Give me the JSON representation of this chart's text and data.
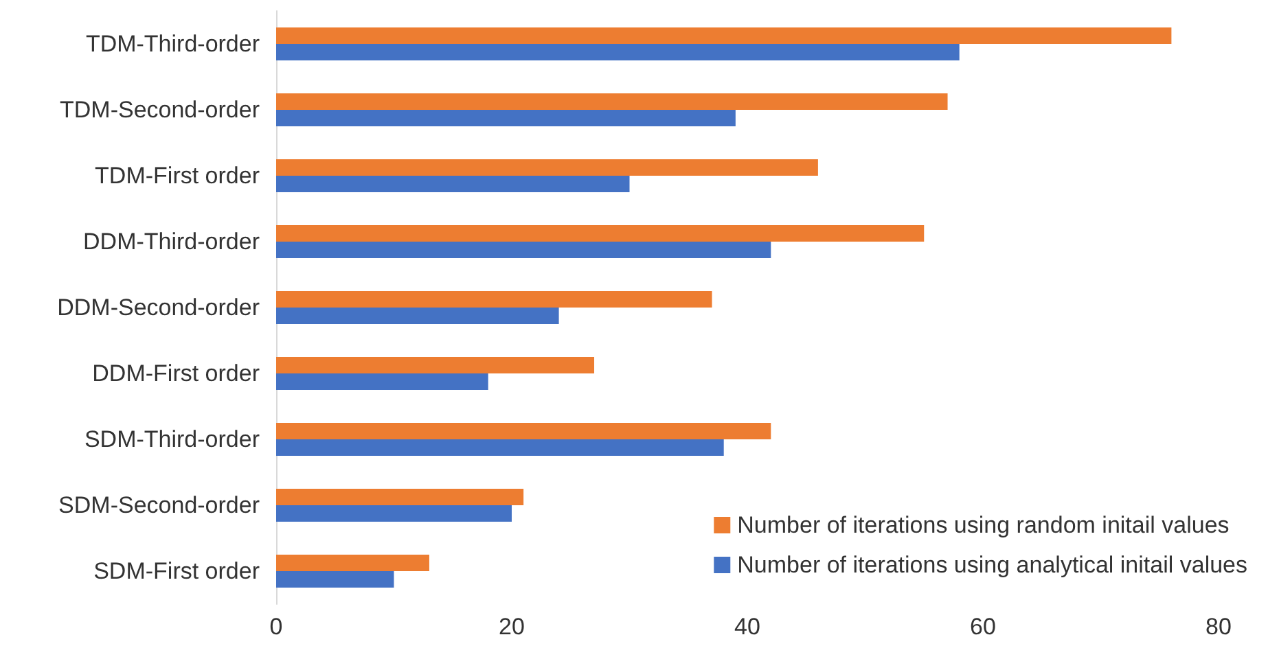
{
  "chart_data": {
    "type": "bar",
    "orientation": "horizontal",
    "categories": [
      "TDM-Third-order",
      "TDM-Second-order",
      "TDM-First order",
      "DDM-Third-order",
      "DDM-Second-order",
      "DDM-First order",
      "SDM-Third-order",
      "SDM-Second-order",
      "SDM-First order"
    ],
    "series": [
      {
        "name": "Number of iterations using random initail values",
        "color": "#ed7d31",
        "values": [
          76,
          57,
          46,
          55,
          37,
          27,
          42,
          21,
          13
        ]
      },
      {
        "name": "Number of iterations using analytical initail values",
        "color": "#4472c4",
        "values": [
          58,
          39,
          30,
          42,
          24,
          18,
          38,
          20,
          10
        ]
      }
    ],
    "xlim": [
      0,
      80
    ],
    "xticks": [
      0,
      20,
      40,
      60,
      80
    ],
    "grid": false,
    "legend": "bottom right"
  }
}
